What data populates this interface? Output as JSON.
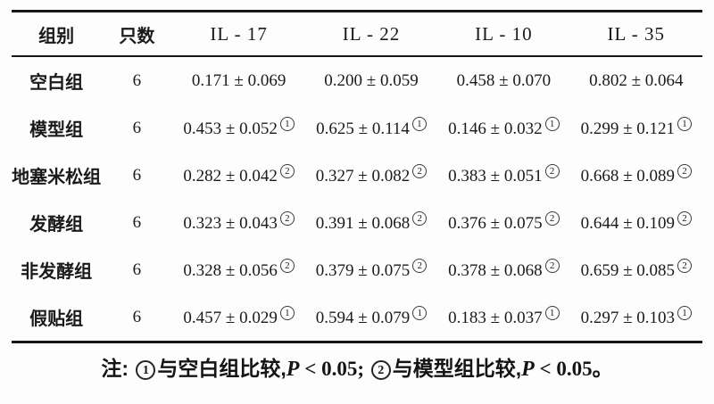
{
  "colors": {
    "background": "#fdfdfd",
    "text": "#1a1a1a",
    "rule": "#161616"
  },
  "table": {
    "headers": [
      "组别",
      "只数",
      "IL - 17",
      "IL - 22",
      "IL - 10",
      "IL - 35"
    ],
    "rows": [
      {
        "group": "空白组",
        "n": "6",
        "cells": [
          {
            "v": "0.171 ± 0.069",
            "m": null
          },
          {
            "v": "0.200 ± 0.059",
            "m": null
          },
          {
            "v": "0.458 ± 0.070",
            "m": null
          },
          {
            "v": "0.802 ± 0.064",
            "m": null
          }
        ]
      },
      {
        "group": "模型组",
        "n": "6",
        "cells": [
          {
            "v": "0.453 ± 0.052",
            "m": "1"
          },
          {
            "v": "0.625 ± 0.114",
            "m": "1"
          },
          {
            "v": "0.146 ± 0.032",
            "m": "1"
          },
          {
            "v": "0.299 ± 0.121",
            "m": "1"
          }
        ]
      },
      {
        "group": "地塞米松组",
        "n": "6",
        "cells": [
          {
            "v": "0.282 ± 0.042",
            "m": "2"
          },
          {
            "v": "0.327 ± 0.082",
            "m": "2"
          },
          {
            "v": "0.383 ± 0.051",
            "m": "2"
          },
          {
            "v": "0.668 ± 0.089",
            "m": "2"
          }
        ]
      },
      {
        "group": "发酵组",
        "n": "6",
        "cells": [
          {
            "v": "0.323 ± 0.043",
            "m": "2"
          },
          {
            "v": "0.391 ± 0.068",
            "m": "2"
          },
          {
            "v": "0.376 ± 0.075",
            "m": "2"
          },
          {
            "v": "0.644 ± 0.109",
            "m": "2"
          }
        ]
      },
      {
        "group": "非发酵组",
        "n": "6",
        "cells": [
          {
            "v": "0.328 ± 0.056",
            "m": "2"
          },
          {
            "v": "0.379 ± 0.075",
            "m": "2"
          },
          {
            "v": "0.378 ± 0.068",
            "m": "2"
          },
          {
            "v": "0.659 ± 0.085",
            "m": "2"
          }
        ]
      },
      {
        "group": "假贴组",
        "n": "6",
        "cells": [
          {
            "v": "0.457 ± 0.029",
            "m": "1"
          },
          {
            "v": "0.594 ± 0.079",
            "m": "1"
          },
          {
            "v": "0.183 ± 0.037",
            "m": "1"
          },
          {
            "v": "0.297 ± 0.103",
            "m": "1"
          }
        ]
      }
    ]
  },
  "note": {
    "label": "注: ",
    "mark1": "1",
    "text1": "与空白组比较,",
    "p1": "P",
    "cond1": " < 0.05; ",
    "mark2": "2",
    "text2": "与模型组比较,",
    "p2": "P",
    "cond2": " < 0.05。"
  },
  "chart_data": {
    "type": "table",
    "columns": [
      "组别",
      "只数",
      "IL - 17",
      "IL - 22",
      "IL - 10",
      "IL - 35"
    ],
    "rows": [
      [
        "空白组",
        "6",
        "0.171 ± 0.069",
        "0.200 ± 0.059",
        "0.458 ± 0.070",
        "0.802 ± 0.064"
      ],
      [
        "模型组",
        "6",
        "0.453 ± 0.052①",
        "0.625 ± 0.114①",
        "0.146 ± 0.032①",
        "0.299 ± 0.121①"
      ],
      [
        "地塞米松组",
        "6",
        "0.282 ± 0.042②",
        "0.327 ± 0.082②",
        "0.383 ± 0.051②",
        "0.668 ± 0.089②"
      ],
      [
        "发酵组",
        "6",
        "0.323 ± 0.043②",
        "0.391 ± 0.068②",
        "0.376 ± 0.075②",
        "0.644 ± 0.109②"
      ],
      [
        "非发酵组",
        "6",
        "0.328 ± 0.056②",
        "0.379 ± 0.075②",
        "0.378 ± 0.068②",
        "0.659 ± 0.085②"
      ],
      [
        "假贴组",
        "6",
        "0.457 ± 0.029①",
        "0.594 ± 0.079①",
        "0.183 ± 0.037①",
        "0.297 ± 0.103①"
      ]
    ],
    "footnote": "注: ①与空白组比较,P < 0.05; ②与模型组比较,P < 0.05。"
  }
}
